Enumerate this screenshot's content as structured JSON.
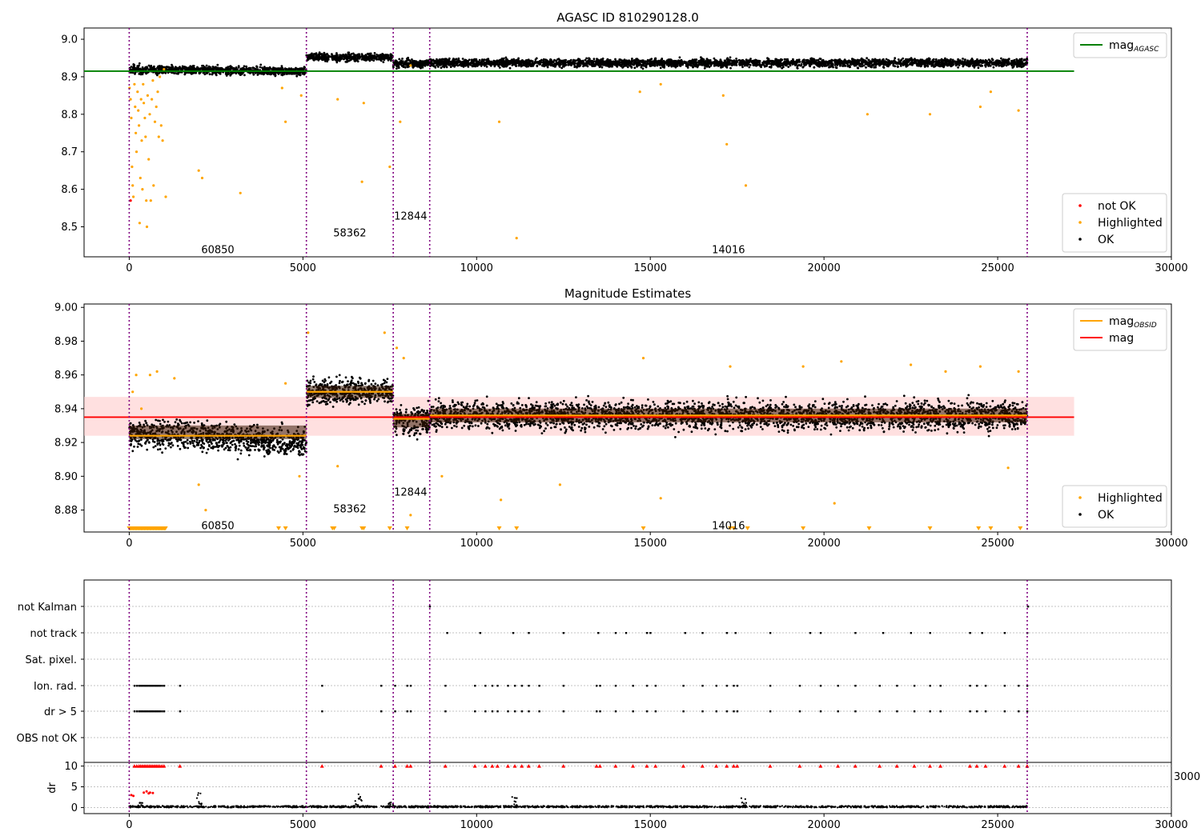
{
  "chart_data": [
    {
      "type": "scatter",
      "title": "AGASC ID 810290128.0",
      "xlim": [
        -1300,
        30000
      ],
      "ylim": [
        8.42,
        9.03
      ],
      "xticks": [
        0,
        5000,
        10000,
        15000,
        20000,
        25000,
        30000
      ],
      "yticks": [
        8.5,
        8.6,
        8.7,
        8.8,
        8.9,
        9.0
      ],
      "obsid_boundaries": [
        0,
        5100,
        7600,
        8650,
        25850
      ],
      "obsid_labels": [
        {
          "text": "60850",
          "x": 2550,
          "y": 8.44
        },
        {
          "text": "58362",
          "x": 6350,
          "y": 8.485
        },
        {
          "text": "12844",
          "x": 8100,
          "y": 8.53
        },
        {
          "text": "14016",
          "x": 17250,
          "y": 8.44
        }
      ],
      "segments": [
        {
          "x0": 0,
          "x1": 5100,
          "level": 8.92,
          "spread": 0.012,
          "tilt": -0.006
        },
        {
          "x0": 5100,
          "x1": 7600,
          "level": 8.952,
          "spread": 0.012,
          "tilt": 0.0
        },
        {
          "x0": 7600,
          "x1": 8650,
          "level": 8.935,
          "spread": 0.012,
          "tilt": 0.0
        },
        {
          "x0": 8650,
          "x1": 25850,
          "level": 8.937,
          "spread": 0.012,
          "tilt": 0.0
        }
      ],
      "highlighted_points": [
        [
          10,
          8.87
        ],
        [
          40,
          8.84
        ],
        [
          60,
          8.79
        ],
        [
          80,
          8.66
        ],
        [
          100,
          8.61
        ],
        [
          120,
          8.58
        ],
        [
          150,
          8.88
        ],
        [
          170,
          8.82
        ],
        [
          190,
          8.75
        ],
        [
          210,
          8.7
        ],
        [
          240,
          8.86
        ],
        [
          260,
          8.81
        ],
        [
          280,
          8.77
        ],
        [
          300,
          8.51
        ],
        [
          320,
          8.63
        ],
        [
          340,
          8.84
        ],
        [
          360,
          8.73
        ],
        [
          380,
          8.6
        ],
        [
          400,
          8.88
        ],
        [
          420,
          8.83
        ],
        [
          450,
          8.79
        ],
        [
          470,
          8.74
        ],
        [
          490,
          8.57
        ],
        [
          510,
          8.5
        ],
        [
          530,
          8.85
        ],
        [
          560,
          8.68
        ],
        [
          590,
          8.8
        ],
        [
          620,
          8.57
        ],
        [
          650,
          8.84
        ],
        [
          680,
          8.89
        ],
        [
          700,
          8.61
        ],
        [
          740,
          8.78
        ],
        [
          780,
          8.82
        ],
        [
          820,
          8.86
        ],
        [
          850,
          8.74
        ],
        [
          880,
          8.9
        ],
        [
          920,
          8.77
        ],
        [
          960,
          8.73
        ],
        [
          1000,
          8.92
        ],
        [
          1050,
          8.58
        ],
        [
          2000,
          8.65
        ],
        [
          2100,
          8.63
        ],
        [
          3200,
          8.59
        ],
        [
          4400,
          8.87
        ],
        [
          4500,
          8.78
        ],
        [
          4950,
          8.85
        ],
        [
          6000,
          8.84
        ],
        [
          6700,
          8.62
        ],
        [
          6750,
          8.83
        ],
        [
          7500,
          8.66
        ],
        [
          7800,
          8.78
        ],
        [
          8100,
          8.93
        ],
        [
          10650,
          8.78
        ],
        [
          11150,
          8.47
        ],
        [
          14700,
          8.86
        ],
        [
          15300,
          8.88
        ],
        [
          17200,
          8.72
        ],
        [
          17100,
          8.85
        ],
        [
          17750,
          8.61
        ],
        [
          21250,
          8.8
        ],
        [
          23050,
          8.8
        ],
        [
          24500,
          8.82
        ],
        [
          24800,
          8.86
        ],
        [
          25600,
          8.81
        ]
      ],
      "not_ok_points": [
        [
          40,
          8.57
        ]
      ],
      "lines": [
        {
          "name": "mag_AGASC",
          "y": 8.915,
          "x0": -1300,
          "x1": 27200,
          "color": "#008000"
        }
      ],
      "legend_lines": [
        {
          "label": "mag",
          "sub": "AGASC",
          "color": "#008000"
        }
      ],
      "legend_markers": [
        {
          "label": "not OK",
          "color": "#ff0000"
        },
        {
          "label": "Highlighted",
          "color": "#ffa500"
        },
        {
          "label": "OK",
          "color": "#000000"
        }
      ]
    },
    {
      "type": "scatter",
      "title": "Magnitude Estimates",
      "xlim": [
        -1300,
        30000
      ],
      "ylim": [
        8.867,
        9.002
      ],
      "xticks": [
        0,
        5000,
        10000,
        15000,
        20000,
        25000,
        30000
      ],
      "yticks": [
        8.88,
        8.9,
        8.92,
        8.94,
        8.96,
        8.98,
        9.0
      ],
      "obsid_boundaries": [
        0,
        5100,
        7600,
        8650,
        25850
      ],
      "obsid_labels": [
        {
          "text": "60850",
          "x": 2550,
          "y": 8.871
        },
        {
          "text": "58362",
          "x": 6350,
          "y": 8.881
        },
        {
          "text": "12844",
          "x": 8100,
          "y": 8.891
        },
        {
          "text": "14016",
          "x": 17250,
          "y": 8.871
        }
      ],
      "band": {
        "y0": 8.924,
        "y1": 8.947,
        "x0": -1300,
        "x1": 27200,
        "color": "#ffcccc"
      },
      "segments": [
        {
          "x0": 0,
          "x1": 5100,
          "level": 8.926,
          "spread": 0.009,
          "tilt": -0.006
        },
        {
          "x0": 5100,
          "x1": 7600,
          "level": 8.95,
          "spread": 0.008,
          "tilt": 0.0
        },
        {
          "x0": 7600,
          "x1": 8650,
          "level": 8.933,
          "spread": 0.009,
          "tilt": 0.0
        },
        {
          "x0": 8650,
          "x1": 25850,
          "level": 8.936,
          "spread": 0.009,
          "tilt": 0.0
        }
      ],
      "obsid_means": [
        {
          "x0": 0,
          "x1": 5100,
          "y": 8.924
        },
        {
          "x0": 5100,
          "x1": 7600,
          "y": 8.95
        },
        {
          "x0": 7600,
          "x1": 8650,
          "y": 8.934
        },
        {
          "x0": 8650,
          "x1": 25850,
          "y": 8.936
        }
      ],
      "highlighted_points": [
        [
          100,
          8.95
        ],
        [
          200,
          8.96
        ],
        [
          350,
          8.94
        ],
        [
          600,
          8.96
        ],
        [
          800,
          8.962
        ],
        [
          1300,
          8.958
        ],
        [
          2000,
          8.895
        ],
        [
          2200,
          8.88
        ],
        [
          4500,
          8.955
        ],
        [
          4900,
          8.9
        ],
        [
          5150,
          8.985
        ],
        [
          6000,
          8.906
        ],
        [
          7350,
          8.985
        ],
        [
          7700,
          8.976
        ],
        [
          7900,
          8.97
        ],
        [
          8100,
          8.877
        ],
        [
          9000,
          8.9
        ],
        [
          10700,
          8.886
        ],
        [
          12400,
          8.895
        ],
        [
          14800,
          8.97
        ],
        [
          15300,
          8.887
        ],
        [
          17300,
          8.965
        ],
        [
          19400,
          8.965
        ],
        [
          20300,
          8.884
        ],
        [
          20500,
          8.968
        ],
        [
          22500,
          8.966
        ],
        [
          23500,
          8.962
        ],
        [
          24500,
          8.965
        ],
        [
          25300,
          8.905
        ],
        [
          25600,
          8.962
        ]
      ],
      "clipped_markers": [
        4300,
        4500,
        5850,
        5900,
        6700,
        6750,
        7500,
        8000,
        10650,
        11150,
        14800,
        17300,
        17400,
        17800,
        19400,
        21300,
        23050,
        24450,
        24800,
        25650
      ],
      "clipped_cluster": [
        0,
        1050
      ],
      "lines": [
        {
          "name": "mag",
          "y": 8.935,
          "x0": -1300,
          "x1": 27200,
          "color": "#ff0000"
        }
      ],
      "legend_lines": [
        {
          "label": "mag",
          "sub": "OBSID",
          "color": "#ffa500"
        },
        {
          "label": "mag",
          "sub": "",
          "color": "#ff0000"
        }
      ],
      "legend_markers": [
        {
          "label": "Highlighted",
          "color": "#ffa500"
        },
        {
          "label": "OK",
          "color": "#000000"
        }
      ]
    },
    {
      "type": "scatter",
      "xlim": [
        -1300,
        30000
      ],
      "xticks": [
        0,
        5000,
        10000,
        15000,
        20000,
        25000,
        30000
      ],
      "obsid_boundaries": [
        0,
        5100,
        7600,
        8650,
        25850
      ],
      "flag_categories": [
        "not Kalman",
        "not track",
        "Sat. pixel.",
        "Ion. rad.",
        "dr > 5",
        "OBS not OK"
      ],
      "flags": {
        "not Kalman": [
          8650,
          25870
        ],
        "not track": [
          9150,
          10100,
          11050,
          11500,
          12500,
          13500,
          14000,
          14300,
          14900,
          15000,
          16000,
          16500,
          17200,
          17450,
          18450,
          19600,
          19900,
          20900,
          21700,
          22500,
          23050,
          24200,
          24550,
          25200,
          25850
        ],
        "Sat. pixel.": [],
        "Ion. rad.": [
          150,
          220,
          280,
          330,
          380,
          430,
          480,
          530,
          580,
          630,
          680,
          730,
          780,
          830,
          880,
          940,
          1000,
          1460,
          5550,
          7250,
          7650,
          8000,
          8100,
          9100,
          9950,
          10250,
          10450,
          10600,
          10900,
          11100,
          11300,
          11500,
          11800,
          12500,
          13450,
          13550,
          14000,
          14500,
          14900,
          15150,
          15950,
          16500,
          16900,
          17200,
          17400,
          17500,
          18450,
          19300,
          19900,
          20400,
          20900,
          21600,
          22100,
          22600,
          23050,
          23350,
          24200,
          24400,
          24650,
          25200,
          25600,
          25850
        ],
        "dr > 5": [
          150,
          220,
          280,
          330,
          380,
          430,
          480,
          530,
          580,
          630,
          680,
          730,
          780,
          830,
          880,
          940,
          1000,
          1460,
          5550,
          7250,
          7650,
          8000,
          8100,
          9100,
          9950,
          10250,
          10450,
          10600,
          10900,
          11100,
          11300,
          11500,
          11800,
          12500,
          13450,
          13550,
          14000,
          14500,
          14900,
          15150,
          15950,
          16500,
          16900,
          17200,
          17400,
          17500,
          18450,
          19300,
          19900,
          20400,
          20900,
          21600,
          22100,
          22600,
          23050,
          23350,
          24200,
          24400,
          24650,
          25200,
          25600,
          25850
        ],
        "OBS not OK": []
      }
    },
    {
      "type": "scatter",
      "ylabel": "dr",
      "xlim": [
        -1300,
        30000
      ],
      "ylim": [
        -0.5,
        10.5
      ],
      "xticks": [
        0,
        5000,
        10000,
        15000,
        20000,
        25000,
        30000
      ],
      "yticks": [
        0,
        5,
        10
      ],
      "obsid_boundaries": [
        0,
        5100,
        7600,
        8650,
        25850
      ],
      "baseline_dr": 0.4,
      "bumps": [
        [
          7500,
          1.8
        ],
        [
          300,
          1.2
        ],
        [
          11100,
          2.7
        ],
        [
          17700,
          2.3
        ],
        [
          2050,
          3.5
        ],
        [
          6600,
          3.4
        ]
      ],
      "red_points_low": [
        [
          60,
          3.0
        ],
        [
          120,
          2.8
        ],
        [
          420,
          3.6
        ],
        [
          500,
          3.9
        ],
        [
          560,
          3.4
        ],
        [
          600,
          3.6
        ],
        [
          680,
          3.5
        ]
      ],
      "red_cap_x": [
        150,
        220,
        280,
        330,
        380,
        430,
        480,
        530,
        580,
        630,
        680,
        730,
        780,
        830,
        880,
        940,
        1000,
        1460,
        5550,
        7250,
        7650,
        8000,
        8100,
        9100,
        9950,
        10250,
        10450,
        10600,
        10900,
        11100,
        11300,
        11500,
        11800,
        12500,
        13450,
        13550,
        14000,
        14500,
        14900,
        15150,
        15950,
        16500,
        16900,
        17200,
        17400,
        17500,
        18450,
        19300,
        19900,
        20400,
        20900,
        21600,
        22100,
        22600,
        23050,
        23350,
        24200,
        24400,
        24650,
        25200,
        25600,
        25850
      ],
      "overlap_tick": "30000"
    }
  ]
}
